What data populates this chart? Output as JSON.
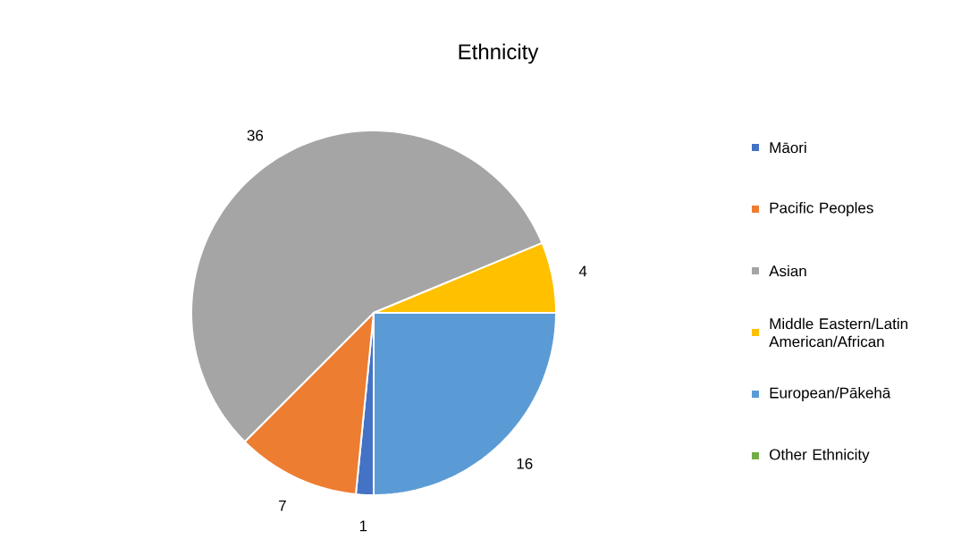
{
  "chart_data": {
    "type": "pie",
    "title": "Ethnicity",
    "categories": [
      "Māori",
      "Pacific Peoples",
      "Asian",
      "Middle Eastern/Latin American/African",
      "European/Pākehā",
      "Other Ethnicity"
    ],
    "values": [
      1,
      7,
      36,
      4,
      16,
      0
    ],
    "colors": [
      "#4472c4",
      "#ed7d31",
      "#a5a5a5",
      "#ffc000",
      "#5b9bd5",
      "#70ad47"
    ],
    "value_labels": [
      "1",
      "7",
      "36",
      "4",
      "16",
      null
    ],
    "legend": "right"
  }
}
